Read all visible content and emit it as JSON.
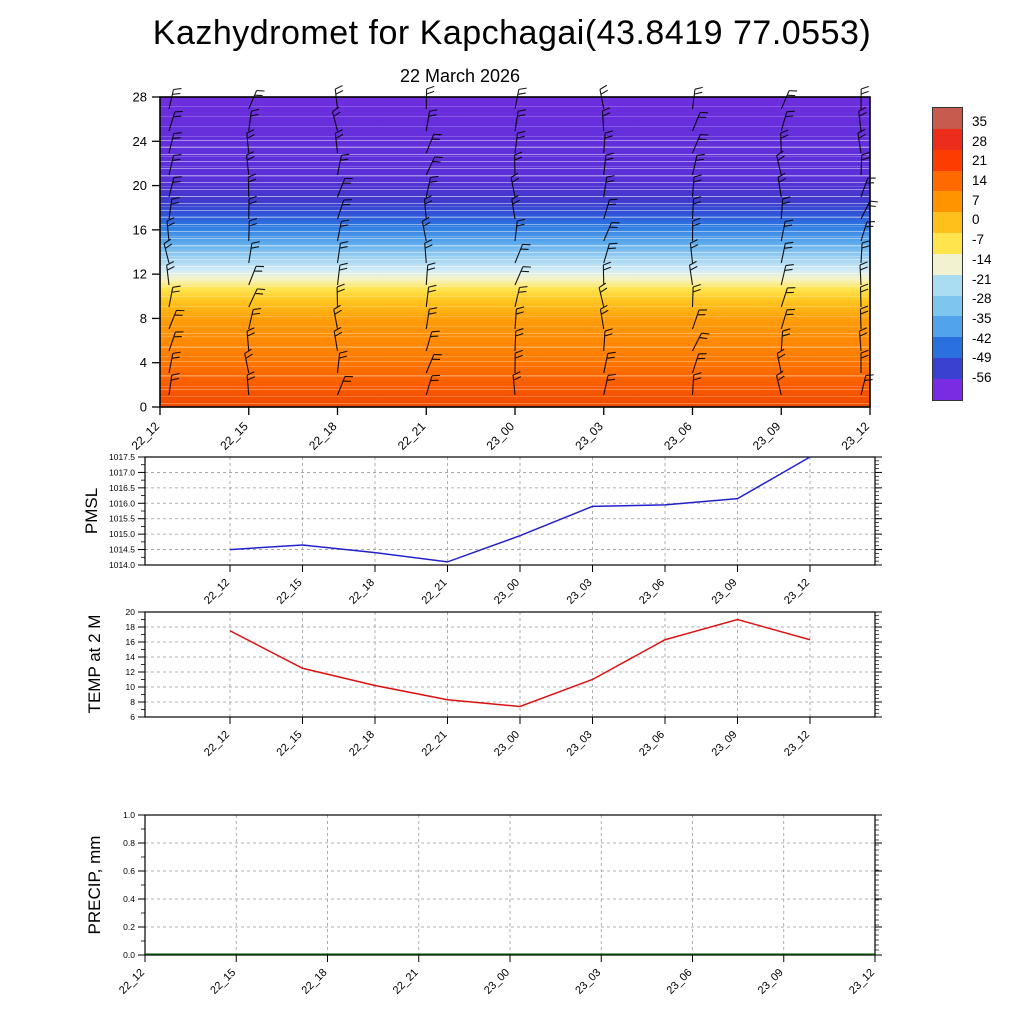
{
  "title": "Kazhydromet for Kapchagai(43.8419 77.0553)",
  "date_label": "22 March 2026",
  "time_labels": [
    "22_12",
    "22_15",
    "22_18",
    "22_21",
    "23_00",
    "23_03",
    "23_06",
    "23_09",
    "23_12"
  ],
  "colorbar": {
    "labels": [
      "35",
      "28",
      "21",
      "14",
      "7",
      "0",
      "-7",
      "-14",
      "-21",
      "-28",
      "-35",
      "-42",
      "-49",
      "-56"
    ],
    "colors": [
      "#c65b4e",
      "#ec2d1c",
      "#fc3c00",
      "#ff6a00",
      "#ff9400",
      "#ffc01c",
      "#ffe44e",
      "#f2f2d0",
      "#aadcf2",
      "#7ec6ee",
      "#51a4ea",
      "#2a70de",
      "#3a41d0",
      "#7a2ce2"
    ]
  },
  "chart_data": [
    {
      "name": "temperature_height_section",
      "type": "heatmap",
      "ylabel": "",
      "x": [
        "22_12",
        "22_15",
        "22_18",
        "22_21",
        "23_00",
        "23_03",
        "23_06",
        "23_09",
        "23_12"
      ],
      "yticks": [
        "0",
        "4",
        "8",
        "12",
        "16",
        "20",
        "24",
        "28"
      ],
      "ylim": [
        0,
        28
      ],
      "wind_barbs": true,
      "gradient_stops": [
        {
          "pos": 0.0,
          "color": "#6e2ede"
        },
        {
          "pos": 0.26,
          "color": "#5a30d8"
        },
        {
          "pos": 0.33,
          "color": "#4138cc"
        },
        {
          "pos": 0.38,
          "color": "#2f55d8"
        },
        {
          "pos": 0.42,
          "color": "#2e7ce2"
        },
        {
          "pos": 0.47,
          "color": "#5caaec"
        },
        {
          "pos": 0.52,
          "color": "#9ed2f2"
        },
        {
          "pos": 0.56,
          "color": "#d4ecf6"
        },
        {
          "pos": 0.59,
          "color": "#f8f2c0"
        },
        {
          "pos": 0.62,
          "color": "#ffe44e"
        },
        {
          "pos": 0.66,
          "color": "#ffc41e"
        },
        {
          "pos": 0.72,
          "color": "#ff9c0a"
        },
        {
          "pos": 0.84,
          "color": "#ff7c02"
        },
        {
          "pos": 0.94,
          "color": "#f85800"
        },
        {
          "pos": 1.0,
          "color": "#ef4a00"
        }
      ]
    },
    {
      "name": "pmsl",
      "type": "line",
      "ylabel": "PMSL",
      "x": [
        "22_12",
        "22_15",
        "22_18",
        "22_21",
        "23_00",
        "23_03",
        "23_06",
        "23_09",
        "23_12"
      ],
      "values": [
        1014.5,
        1014.65,
        1014.4,
        1014.1,
        1014.95,
        1015.9,
        1015.95,
        1016.15,
        1017.5
      ],
      "ylim": [
        1014.0,
        1017.5
      ],
      "yticks": [
        "1014.0",
        "1014.5",
        "1015.0",
        "1015.5",
        "1016.0",
        "1016.5",
        "1017.0",
        "1017.5"
      ],
      "line_color": "#2222cc"
    },
    {
      "name": "temp_2m",
      "type": "line",
      "ylabel": "TEMP at 2 M",
      "x": [
        "22_12",
        "22_15",
        "22_18",
        "22_21",
        "23_00",
        "23_03",
        "23_06",
        "23_09",
        "23_12"
      ],
      "values": [
        17.5,
        12.5,
        10.2,
        8.3,
        7.4,
        11.0,
        16.3,
        19.0,
        16.3
      ],
      "ylim": [
        6,
        20
      ],
      "yticks": [
        "6",
        "8",
        "10",
        "12",
        "14",
        "16",
        "18",
        "20"
      ],
      "line_color": "#dd1111"
    },
    {
      "name": "precip",
      "type": "line",
      "ylabel": "PRECIP, mm",
      "x": [
        "22_12",
        "22_15",
        "22_18",
        "22_21",
        "23_00",
        "23_03",
        "23_06",
        "23_09",
        "23_12"
      ],
      "values": [
        0,
        0,
        0,
        0,
        0,
        0,
        0,
        0,
        0
      ],
      "ylim": [
        0,
        1.0
      ],
      "yticks": [
        "0.0",
        "0.2",
        "0.4",
        "0.6",
        "0.8",
        "1.0"
      ],
      "line_color": "#004400"
    }
  ]
}
